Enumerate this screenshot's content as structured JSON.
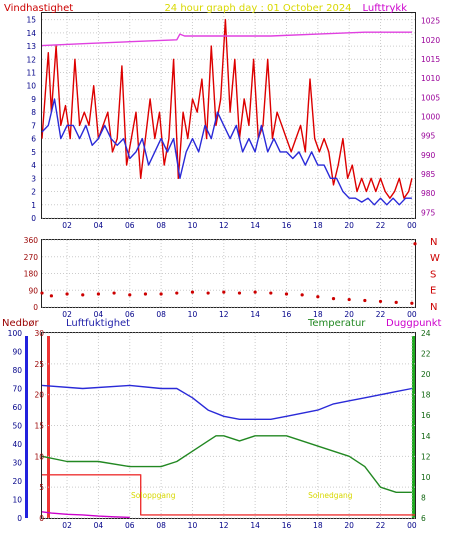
{
  "title": "24 hour graph day : 01 October 2024",
  "x_ticks": [
    "02",
    "04",
    "06",
    "08",
    "10",
    "12",
    "14",
    "16",
    "18",
    "20",
    "22",
    "00"
  ],
  "colors": {
    "wind": "#dd0000",
    "wind_avg": "#2a2ad8",
    "pressure": "#e040e0",
    "title": "#d8d800",
    "direction": "#cc0000",
    "precip": "#990000",
    "humidity": "#2a2ad8",
    "temperature": "#228822",
    "dewpoint": "#cc00cc",
    "bar_red": "#ee3333",
    "bar_blue": "#2222dd",
    "bar_green": "#22aa22",
    "sun": "#d8d800"
  },
  "chart_data": [
    {
      "type": "line",
      "panel": "wind_pressure",
      "ylabel_left": "Vindhastighet",
      "ylabel_right": "Lufttrykk",
      "left_ticks": [
        "0",
        "1",
        "2",
        "3",
        "4",
        "5",
        "6",
        "7",
        "8",
        "9",
        "10",
        "11",
        "12",
        "13",
        "14",
        "15"
      ],
      "right_ticks": [
        "975",
        "980",
        "985",
        "990",
        "995",
        "1000",
        "1005",
        "1010",
        "1015",
        "1020",
        "1025"
      ],
      "ylim_left": [
        0,
        15.5
      ],
      "ylim_right": [
        973.5,
        1027
      ],
      "x_hours_range": [
        0.4,
        24.2
      ],
      "series": [
        {
          "color": "wind",
          "x": [
            0.4,
            0.8,
            1.0,
            1.3,
            1.6,
            1.9,
            2.2,
            2.5,
            2.8,
            3.1,
            3.4,
            3.7,
            4.0,
            4.3,
            4.6,
            4.9,
            5.2,
            5.5,
            5.8,
            6.1,
            6.4,
            6.7,
            7.0,
            7.3,
            7.6,
            7.9,
            8.2,
            8.5,
            8.8,
            9.1,
            9.4,
            9.7,
            10.0,
            10.3,
            10.6,
            10.9,
            11.2,
            11.5,
            11.8,
            12.1,
            12.4,
            12.7,
            13.0,
            13.3,
            13.6,
            13.9,
            14.2,
            14.5,
            14.8,
            15.1,
            15.4,
            15.7,
            16.0,
            16.3,
            16.6,
            16.9,
            17.2,
            17.5,
            17.8,
            18.1,
            18.4,
            18.7,
            19.0,
            19.3,
            19.6,
            19.9,
            20.2,
            20.5,
            20.8,
            21.1,
            21.4,
            21.7,
            22.0,
            22.3,
            22.6,
            22.9,
            23.2,
            23.5,
            23.8,
            24.0
          ],
          "y": [
            6,
            12.5,
            8,
            13,
            7,
            8.5,
            6,
            12,
            7,
            8,
            7,
            10,
            6,
            7,
            8,
            5,
            6,
            11.5,
            4,
            6,
            8,
            3,
            6,
            9,
            6,
            8,
            4,
            6,
            12,
            3,
            8,
            6,
            9,
            8,
            10.5,
            6,
            13,
            7,
            9,
            15,
            8,
            12,
            6,
            9,
            7,
            12,
            6,
            7,
            12,
            6,
            8,
            7,
            6,
            5,
            6,
            7,
            5,
            10.5,
            6,
            5,
            6,
            5,
            2.5,
            4,
            6,
            3,
            4,
            2,
            3,
            2,
            3,
            2,
            3,
            2,
            1.5,
            2,
            3,
            1.5,
            2,
            3
          ]
        },
        {
          "color": "wind_avg",
          "x": [
            0.4,
            0.8,
            1.2,
            1.6,
            2.0,
            2.4,
            2.8,
            3.2,
            3.6,
            4.0,
            4.4,
            4.8,
            5.2,
            5.6,
            6.0,
            6.4,
            6.8,
            7.2,
            7.6,
            8.0,
            8.4,
            8.8,
            9.2,
            9.6,
            10.0,
            10.4,
            10.8,
            11.2,
            11.6,
            12.0,
            12.4,
            12.8,
            13.2,
            13.6,
            14.0,
            14.4,
            14.8,
            15.2,
            15.6,
            16.0,
            16.4,
            16.8,
            17.2,
            17.6,
            18.0,
            18.4,
            18.8,
            19.2,
            19.6,
            20.0,
            20.4,
            20.8,
            21.2,
            21.6,
            22.0,
            22.4,
            22.8,
            23.2,
            23.6,
            24.0
          ],
          "y": [
            6.5,
            7,
            9,
            6,
            7,
            7,
            6,
            7,
            5.5,
            6,
            7,
            6,
            5.5,
            6,
            4.5,
            5,
            6,
            4,
            5,
            6,
            5,
            6,
            3,
            5,
            6,
            5,
            7,
            6,
            8,
            7,
            6,
            7,
            5,
            6,
            5,
            7,
            5,
            6,
            5,
            5,
            4.5,
            5,
            4,
            5,
            4,
            4,
            3,
            3,
            2,
            1.5,
            1.5,
            1.2,
            1.5,
            1,
            1.5,
            1,
            1.5,
            1,
            1.5,
            1.5
          ]
        },
        {
          "color": "pressure",
          "axis": "right",
          "x": [
            0.4,
            3,
            6,
            9,
            9.2,
            9.5,
            10,
            12,
            15,
            18,
            21,
            23,
            24
          ],
          "y": [
            1018.5,
            1019,
            1019.5,
            1020,
            1021.5,
            1021,
            1021,
            1021,
            1021,
            1021.5,
            1022,
            1022,
            1022
          ]
        }
      ]
    },
    {
      "type": "scatter",
      "panel": "wind_direction",
      "left_ticks": [
        "0",
        "90",
        "180",
        "270",
        "360"
      ],
      "ylim": [
        0,
        360
      ],
      "direction_labels": [
        "N",
        "W",
        "S",
        "E",
        "N"
      ],
      "x_hours_range": [
        0.4,
        24.2
      ],
      "series": [
        {
          "color": "direction",
          "x": [
            0.4,
            1,
            2,
            3,
            4,
            5,
            6,
            7,
            8,
            9,
            10,
            11,
            12,
            13,
            14,
            15,
            16,
            17,
            18,
            19,
            20,
            21,
            22,
            23,
            24
          ],
          "y": [
            75,
            60,
            70,
            65,
            70,
            75,
            65,
            70,
            70,
            75,
            80,
            75,
            80,
            75,
            80,
            75,
            70,
            65,
            55,
            45,
            40,
            35,
            30,
            25,
            20
          ]
        },
        {
          "color": "direction",
          "x": [
            24.2
          ],
          "y": [
            340
          ]
        }
      ]
    },
    {
      "type": "line",
      "panel": "weather",
      "label_precip": "Nedbør",
      "label_humidity": "Luftfuktighet",
      "label_temperature": "Temperatur",
      "label_dewpoint": "Duggpunkt",
      "precip_ticks": [
        "0",
        "10",
        "20",
        "30",
        "40",
        "50",
        "60",
        "70",
        "80",
        "90",
        "100"
      ],
      "humidity_ticks": [
        "0",
        "5",
        "10",
        "15",
        "20",
        "25",
        "30"
      ],
      "temp_ticks": [
        "6",
        "8",
        "10",
        "12",
        "14",
        "16",
        "18",
        "20",
        "22",
        "24"
      ],
      "ylim_humidity": [
        0,
        30
      ],
      "ylim_temp": [
        6,
        24
      ],
      "sun_labels": [
        "Soloppgang",
        "Solnedgang"
      ],
      "sun_label_x": [
        7.5,
        18.8
      ],
      "x_hours_range": [
        0.4,
        24.2
      ],
      "series": [
        {
          "color": "humidity",
          "x": [
            0.4,
            3,
            6,
            8,
            9,
            10,
            11,
            12,
            13,
            14,
            15,
            16,
            17,
            18,
            19,
            20,
            21,
            22,
            23,
            24
          ],
          "y": [
            21.5,
            21,
            21.5,
            21,
            21,
            19.5,
            17.5,
            16.5,
            16,
            16,
            16,
            16.5,
            17,
            17.5,
            18.5,
            19,
            19.5,
            20,
            20.5,
            21
          ]
        },
        {
          "color": "temperature",
          "axis": "right",
          "x": [
            0.4,
            2,
            4,
            6,
            7,
            8,
            9,
            10,
            11,
            11.5,
            12,
            13,
            14,
            15,
            16,
            17,
            18,
            19,
            20,
            21,
            21.5,
            22,
            23,
            24
          ],
          "y": [
            12,
            11.5,
            11.5,
            11,
            11,
            11,
            11.5,
            12.5,
            13.5,
            14,
            14,
            13.5,
            14,
            14,
            14,
            13.5,
            13,
            12.5,
            12,
            11,
            10,
            9,
            8.5,
            8.5
          ]
        },
        {
          "color": "bar_red",
          "x": [
            0.4,
            6.7,
            6.7,
            24.2
          ],
          "y": [
            7,
            7,
            0.5,
            0.5
          ]
        },
        {
          "color": "dewpoint",
          "x": [
            0.4,
            1,
            2,
            3,
            4,
            5,
            6
          ],
          "y": [
            1,
            0.8,
            0.6,
            0.5,
            0.3,
            0.2,
            0.1
          ]
        }
      ]
    }
  ]
}
